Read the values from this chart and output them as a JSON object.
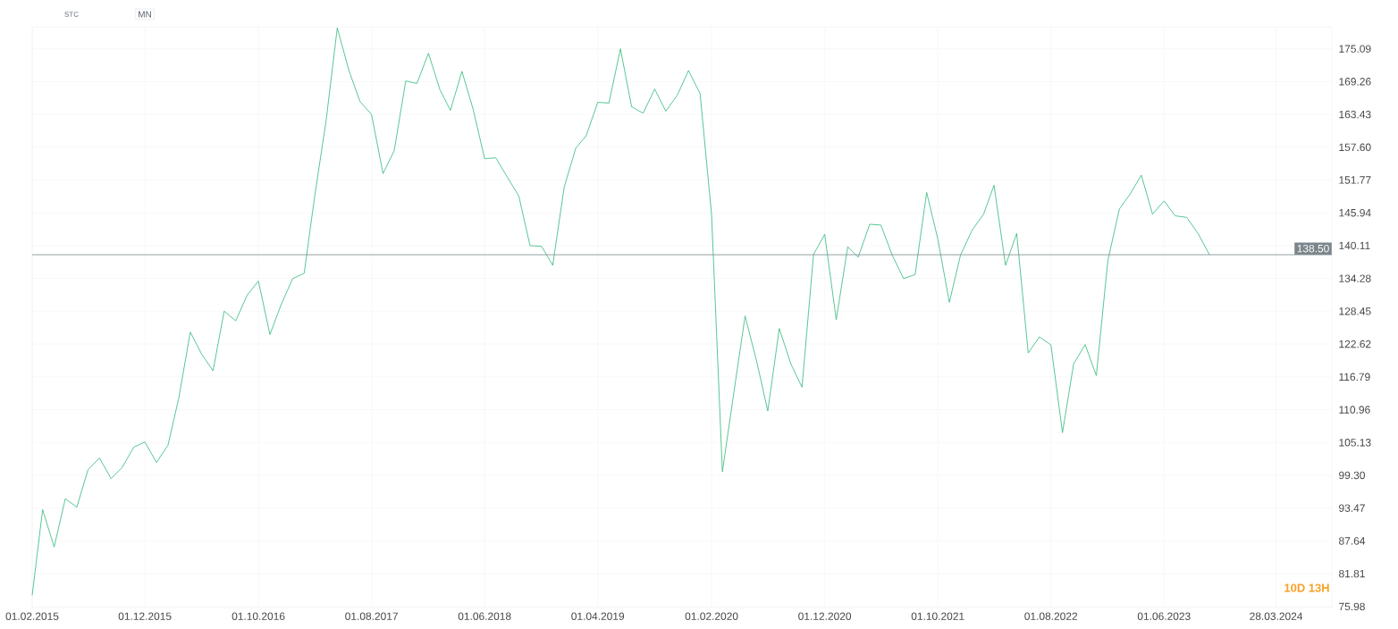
{
  "chart_data": {
    "type": "line",
    "annotations": [
      "STC",
      "MN",
      "10D 13H"
    ],
    "series": [
      {
        "color": "#2fb87a",
        "x": [
          "2015-02",
          "2015-03",
          "2015-04",
          "2015-05",
          "2015-06",
          "2015-07",
          "2015-08",
          "2015-09",
          "2015-10",
          "2015-11",
          "2015-12",
          "2016-01",
          "2016-02",
          "2016-03",
          "2016-04",
          "2016-05",
          "2016-06",
          "2016-07",
          "2016-08",
          "2016-09",
          "2016-10",
          "2016-11",
          "2016-12",
          "2017-01",
          "2017-02",
          "2017-03",
          "2017-04",
          "2017-05",
          "2017-06",
          "2017-07",
          "2017-08",
          "2017-09",
          "2017-10",
          "2017-11",
          "2017-12",
          "2018-01",
          "2018-02",
          "2018-03",
          "2018-04",
          "2018-05",
          "2018-06",
          "2018-07",
          "2018-08",
          "2018-09",
          "2018-10",
          "2018-11",
          "2018-12",
          "2019-01",
          "2019-02",
          "2019-03",
          "2019-04",
          "2019-05",
          "2019-06",
          "2019-07",
          "2019-08",
          "2019-09",
          "2019-10",
          "2019-11",
          "2019-12",
          "2020-01",
          "2020-02",
          "2020-03",
          "2020-04",
          "2020-05",
          "2020-06",
          "2020-07",
          "2020-08",
          "2020-09",
          "2020-10",
          "2020-11",
          "2020-12",
          "2021-01",
          "2021-02",
          "2021-03",
          "2021-04",
          "2021-05",
          "2021-06",
          "2021-07",
          "2021-08",
          "2021-09",
          "2021-10",
          "2021-11",
          "2021-12",
          "2022-01",
          "2022-02",
          "2022-03",
          "2022-04",
          "2022-05",
          "2022-06",
          "2022-07",
          "2022-08",
          "2022-09",
          "2022-10",
          "2022-11",
          "2022-12",
          "2023-01",
          "2023-02",
          "2023-03",
          "2023-04",
          "2023-05",
          "2023-06",
          "2023-07",
          "2023-08",
          "2023-09",
          "2023-10"
        ],
        "values": [
          77.98,
          93.21,
          86.56,
          95.14,
          93.64,
          100.29,
          102.37,
          98.72,
          100.72,
          104.3,
          105.23,
          101.58,
          104.65,
          113.02,
          124.75,
          120.89,
          117.88,
          128.47,
          126.75,
          131.33,
          133.83,
          124.32,
          129.61,
          134.26,
          135.19,
          148.77,
          162.36,
          178.81,
          171.3,
          165.72,
          163.43,
          152.92,
          157.0,
          169.37,
          168.94,
          174.3,
          167.8,
          164.15,
          171.09,
          164.36,
          155.57,
          155.71,
          152.28,
          148.92,
          140.12,
          139.98,
          136.62,
          150.56,
          157.43,
          159.64,
          165.58,
          165.44,
          175.09,
          164.79,
          163.65,
          167.94,
          164.01,
          166.87,
          171.23,
          167.15,
          145.56,
          99.94,
          114.09,
          127.61,
          119.6,
          110.73,
          125.39,
          119.1,
          114.95,
          138.55,
          142.12,
          126.97,
          139.91,
          138.05,
          143.91,
          143.77,
          138.33,
          134.26,
          134.97,
          149.56,
          141.3,
          130.04,
          138.41,
          142.84,
          145.7,
          150.85,
          136.62,
          142.27,
          121.03,
          123.89,
          122.46,
          106.87,
          119.1,
          122.53,
          117.03,
          137.48,
          146.63,
          149.2,
          152.64,
          145.7,
          148.06,
          145.41,
          145.13,
          142.2,
          138.5
        ]
      }
    ],
    "xlim": [
      "2015-02-01",
      "2024-08-25"
    ],
    "xticks": [
      {
        "value": "2015-02-01",
        "label": "01.02.2015"
      },
      {
        "value": "2015-12-01",
        "label": "01.12.2015"
      },
      {
        "value": "2016-10-01",
        "label": "01.10.2016"
      },
      {
        "value": "2017-08-01",
        "label": "01.08.2017"
      },
      {
        "value": "2018-06-01",
        "label": "01.06.2018"
      },
      {
        "value": "2019-04-01",
        "label": "01.04.2019"
      },
      {
        "value": "2020-02-01",
        "label": "01.02.2020"
      },
      {
        "value": "2020-12-01",
        "label": "01.12.2020"
      },
      {
        "value": "2021-10-01",
        "label": "01.10.2021"
      },
      {
        "value": "2022-08-01",
        "label": "01.08.2022"
      },
      {
        "value": "2023-06-01",
        "label": "01.06.2023"
      },
      {
        "value": "2024-03-28",
        "label": "28.03.2024"
      }
    ],
    "ylim": [
      75.8,
      179
    ],
    "yticks": [
      75.98,
      81.81,
      87.64,
      93.47,
      {
        "value": 99.3,
        "label": "99.30"
      },
      105.13,
      110.96,
      116.79,
      122.62,
      128.45,
      134.28,
      140.11,
      145.94,
      151.77,
      {
        "value": 157.6,
        "label": "157.60"
      },
      163.43,
      169.26,
      175.09
    ],
    "ref_lines": [
      {
        "axis": "y",
        "value": 138.5,
        "label": "138.50",
        "color": "#7b868c"
      }
    ],
    "grid": true
  }
}
